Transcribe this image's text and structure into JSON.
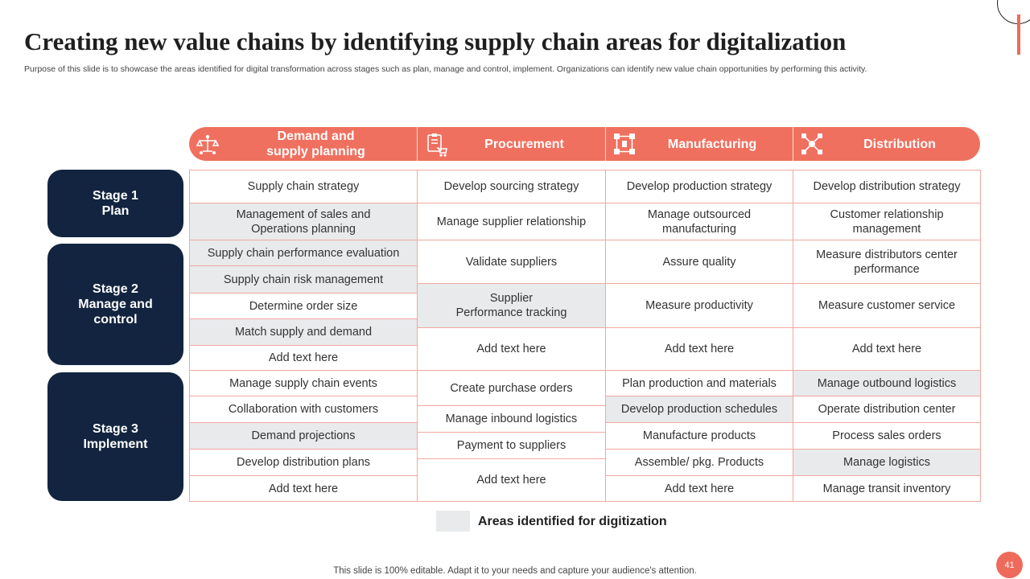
{
  "slide": {
    "title": "Creating new value chains by identifying supply chain areas for digitalization",
    "subtitle": "Purpose of this slide is to showcase the areas identified for digital transformation across stages such as plan, manage and control, implement. Organizations can identify new value chain opportunities by performing this activity.",
    "footer": "This slide is 100% editable. Adapt it to your needs and capture your audience's attention.",
    "page_number": "41"
  },
  "colors": {
    "accent": "#f0705f",
    "navy": "#12243f",
    "highlight": "#e8eaec",
    "border": "#f0a99f"
  },
  "columns": [
    {
      "label": "Demand and\nsupply planning",
      "icon": "scale-network-icon"
    },
    {
      "label": "Procurement",
      "icon": "clipboard-cart-icon"
    },
    {
      "label": "Manufacturing",
      "icon": "factory-flow-icon"
    },
    {
      "label": "Distribution",
      "icon": "distribution-network-icon"
    }
  ],
  "stages": [
    {
      "label": "Stage 1\nPlan"
    },
    {
      "label": "Stage 2\nManage and\ncontrol"
    },
    {
      "label": "Stage 3\nImplement"
    }
  ],
  "grid": {
    "demand": [
      {
        "text": "Supply chain strategy",
        "highlight": false
      },
      {
        "text": "Management of sales and\nOperations planning",
        "highlight": true
      },
      {
        "text": "Supply chain performance evaluation",
        "highlight": true
      },
      {
        "text": "Supply chain risk management",
        "highlight": true
      },
      {
        "text": "Determine order size",
        "highlight": false
      },
      {
        "text": "Match supply and demand",
        "highlight": true
      },
      {
        "text": "Add text here",
        "highlight": false
      },
      {
        "text": "Manage supply chain events",
        "highlight": false
      },
      {
        "text": "Collaboration with customers",
        "highlight": false
      },
      {
        "text": "Demand projections",
        "highlight": true
      },
      {
        "text": "Develop distribution plans",
        "highlight": false
      },
      {
        "text": "Add text here",
        "highlight": false
      }
    ],
    "procurement": [
      {
        "text": "Develop sourcing strategy",
        "highlight": false
      },
      {
        "text": "Manage supplier relationship",
        "highlight": false
      },
      {
        "text": "Validate suppliers",
        "highlight": false
      },
      {
        "text": "Supplier\nPerformance tracking",
        "highlight": true
      },
      {
        "text": "Add text here",
        "highlight": false
      },
      {
        "text": "Create purchase orders",
        "highlight": false
      },
      {
        "text": "Manage inbound logistics",
        "highlight": false
      },
      {
        "text": "Payment to suppliers",
        "highlight": false
      },
      {
        "text": "Add text here",
        "highlight": false
      }
    ],
    "manufacturing": [
      {
        "text": "Develop production strategy",
        "highlight": false
      },
      {
        "text": "Manage outsourced\nmanufacturing",
        "highlight": false
      },
      {
        "text": "Assure quality",
        "highlight": false
      },
      {
        "text": "Measure productivity",
        "highlight": false
      },
      {
        "text": "Add text here",
        "highlight": false
      },
      {
        "text": "Plan production and materials",
        "highlight": false
      },
      {
        "text": "Develop production schedules",
        "highlight": true
      },
      {
        "text": "Manufacture products",
        "highlight": false
      },
      {
        "text": "Assemble/ pkg. Products",
        "highlight": false
      },
      {
        "text": "Add text here",
        "highlight": false
      }
    ],
    "distribution": [
      {
        "text": "Develop distribution strategy",
        "highlight": false
      },
      {
        "text": "Customer relationship\nmanagement",
        "highlight": false
      },
      {
        "text": "Measure distributors center\nperformance",
        "highlight": false
      },
      {
        "text": "Measure customer service",
        "highlight": false
      },
      {
        "text": "Add text here",
        "highlight": false
      },
      {
        "text": "Manage outbound logistics",
        "highlight": true
      },
      {
        "text": "Operate distribution center",
        "highlight": false
      },
      {
        "text": "Process sales orders",
        "highlight": false
      },
      {
        "text": "Manage logistics",
        "highlight": true
      },
      {
        "text": "Manage transit inventory",
        "highlight": false
      }
    ]
  },
  "legend": {
    "label": "Areas identified for digitization"
  }
}
